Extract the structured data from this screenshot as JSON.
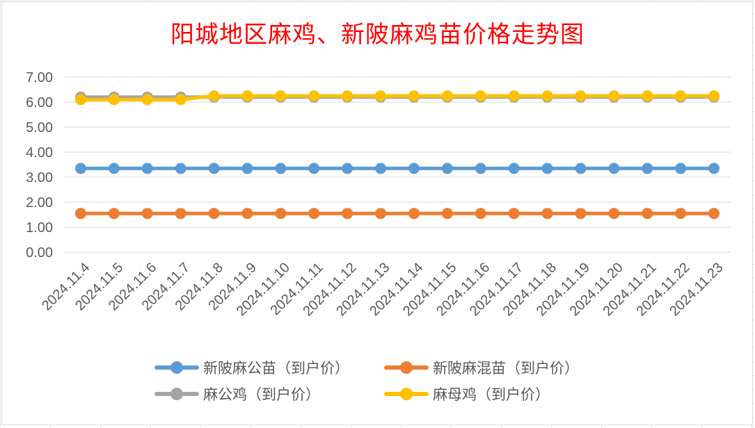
{
  "chart_data": {
    "type": "line",
    "title": "阳城地区麻鸡、新陂麻鸡苗价格走势图",
    "xlabel": "",
    "ylabel": "",
    "ylim": [
      0,
      7
    ],
    "yticks": [
      "7.00",
      "6.00",
      "5.00",
      "4.00",
      "3.00",
      "2.00",
      "1.00",
      "0.00"
    ],
    "categories": [
      "2024.11.4",
      "2024.11.5",
      "2024.11.6",
      "2024.11.7",
      "2024.11.8",
      "2024.11.9",
      "2024.11.10",
      "2024.11.11",
      "2024.11.12",
      "2024.11.13",
      "2024.11.14",
      "2024.11.15",
      "2024.11.16",
      "2024.11.17",
      "2024.11.18",
      "2024.11.19",
      "2024.11.20",
      "2024.11.21",
      "2024.11.22",
      "2024.11.23"
    ],
    "grid": true,
    "legend_position": "bottom",
    "series": [
      {
        "name": "新陂麻公苗（到户价）",
        "color": "#5B9BD5",
        "values": [
          3.35,
          3.35,
          3.35,
          3.35,
          3.35,
          3.35,
          3.35,
          3.35,
          3.35,
          3.35,
          3.35,
          3.35,
          3.35,
          3.35,
          3.35,
          3.35,
          3.35,
          3.35,
          3.35,
          3.35
        ]
      },
      {
        "name": "新陂麻混苗（到户价）",
        "color": "#ED7D31",
        "values": [
          1.55,
          1.55,
          1.55,
          1.55,
          1.55,
          1.55,
          1.55,
          1.55,
          1.55,
          1.55,
          1.55,
          1.55,
          1.55,
          1.55,
          1.55,
          1.55,
          1.55,
          1.55,
          1.55,
          1.55
        ]
      },
      {
        "name": "麻公鸡（到户价）",
        "color": "#A5A5A5",
        "values": [
          6.2,
          6.2,
          6.2,
          6.2,
          6.2,
          6.2,
          6.2,
          6.2,
          6.2,
          6.2,
          6.2,
          6.2,
          6.2,
          6.2,
          6.2,
          6.2,
          6.2,
          6.2,
          6.2,
          6.2
        ]
      },
      {
        "name": "麻母鸡（到户价）",
        "color": "#FFC000",
        "values": [
          6.1,
          6.1,
          6.1,
          6.1,
          6.25,
          6.25,
          6.25,
          6.25,
          6.25,
          6.25,
          6.25,
          6.25,
          6.25,
          6.25,
          6.25,
          6.25,
          6.25,
          6.25,
          6.25,
          6.25
        ]
      }
    ]
  }
}
